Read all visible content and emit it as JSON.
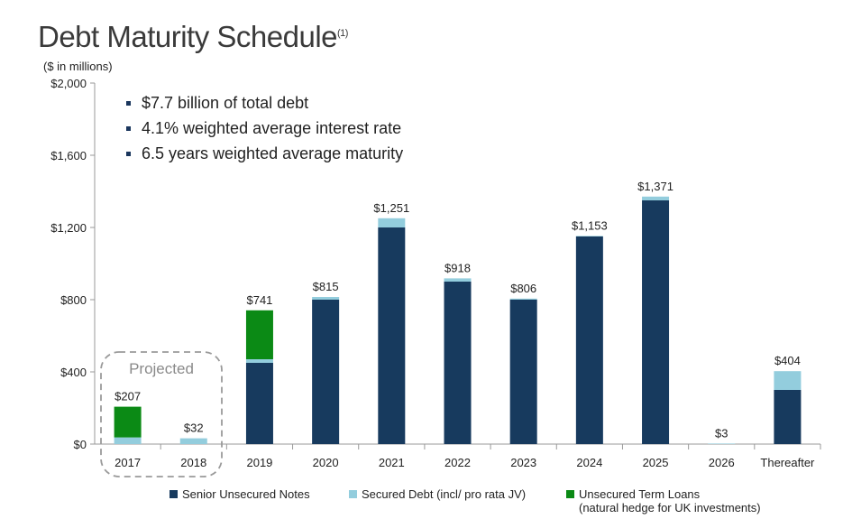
{
  "title": "Debt Maturity Schedule",
  "title_footnote": "(1)",
  "bullets": [
    "$7.7 billion of total debt",
    "4.1% weighted average interest rate",
    "6.5 years weighted average maturity"
  ],
  "annotation": "Projected",
  "colors": {
    "senior": "#173a5e",
    "secured": "#93cddd",
    "term": "#0b8a15"
  },
  "chart_data": {
    "type": "bar",
    "stacked": true,
    "unit_label": "($ in millions)",
    "categories": [
      "2017",
      "2018",
      "2019",
      "2020",
      "2021",
      "2022",
      "2023",
      "2024",
      "2025",
      "2026",
      "Thereafter"
    ],
    "series": [
      {
        "name": "Senior Unsecured Notes",
        "values": [
          0,
          0,
          450,
          800,
          1200,
          900,
          800,
          1150,
          1350,
          0,
          300
        ]
      },
      {
        "name": "Secured Debt (incl/ pro rata JV)",
        "values": [
          37,
          32,
          20,
          15,
          51,
          18,
          6,
          3,
          21,
          3,
          104
        ]
      },
      {
        "name": "Unsecured Term Loans",
        "values": [
          170,
          0,
          271,
          0,
          0,
          0,
          0,
          0,
          0,
          0,
          0
        ]
      }
    ],
    "totals": [
      "$207",
      "$32",
      "$741",
      "$815",
      "$1,251",
      "$918",
      "$806",
      "$1,153",
      "$1,371",
      "$3",
      "$404"
    ],
    "y_ticks": [
      "$0",
      "$400",
      "$800",
      "$1,200",
      "$1,600",
      "$2,000"
    ],
    "y_tick_values": [
      0,
      400,
      800,
      1200,
      1600,
      2000
    ],
    "ylim": [
      0,
      2000
    ],
    "legend": [
      {
        "label": "Senior Unsecured Notes"
      },
      {
        "label": "Secured Debt (incl/ pro rata JV)"
      },
      {
        "label": "Unsecured Term Loans",
        "sublabel": "(natural hedge for UK investments)"
      }
    ],
    "legend_position": "bottom",
    "grid": false
  }
}
